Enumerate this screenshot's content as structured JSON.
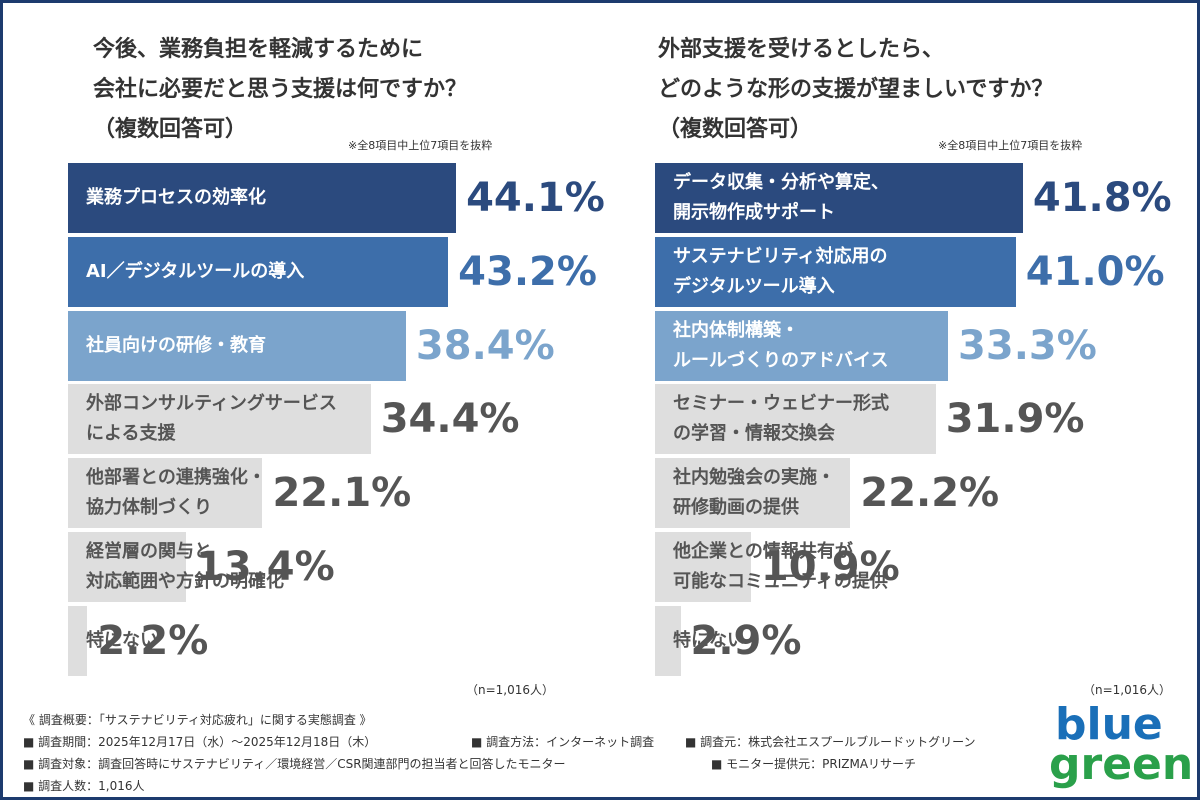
{
  "chart_data": [
    {
      "type": "bar",
      "orientation": "horizontal",
      "title": [
        "今後、業務負担を軽減するために",
        "会社に必要だと思う支援は何ですか？",
        "（複数回答可）"
      ],
      "note": "※全8項目中上位7項目を抜粋",
      "sample": "（n=1,016人）",
      "categories": [
        "業務プロセスの効率化",
        "AI／デジタルツールの導入",
        "社員向けの研修・教育",
        "外部コンサルティングサービス\nによる支援",
        "他部署との連携強化・\n協力体制づくり",
        "経営層の関与と\n対応範囲や方針の明確化",
        "特にない"
      ],
      "values": [
        44.1,
        43.2,
        38.4,
        34.4,
        22.1,
        13.4,
        2.2
      ],
      "value_labels": [
        "44.1%",
        "43.2%",
        "38.4%",
        "34.4%",
        "22.1%",
        "13.4%",
        "2.2%"
      ],
      "colors": [
        "#2b4a7e",
        "#3d6eaa",
        "#7ba4cc",
        "#dedede",
        "#dedede",
        "#dedede",
        "#dedede"
      ],
      "text_colors": [
        "#ffffff",
        "#ffffff",
        "#ffffff",
        "#555555",
        "#555555",
        "#555555",
        "#555555"
      ],
      "value_label_colors": [
        "#2b4a7e",
        "#3d6eaa",
        "#7ba4cc",
        "#555555",
        "#555555",
        "#555555",
        "#555555"
      ]
    },
    {
      "type": "bar",
      "orientation": "horizontal",
      "title": [
        "外部支援を受けるとしたら、",
        "どのような形の支援が望ましいですか？",
        "（複数回答可）"
      ],
      "note": "※全8項目中上位7項目を抜粋",
      "sample": "（n=1,016人）",
      "categories": [
        "データ収集・分析や算定、\n開示物作成サポート",
        "サステナビリティ対応用の\nデジタルツール導入",
        "社内体制構築・\nルールづくりのアドバイス",
        "セミナー・ウェビナー形式\nの学習・情報交換会",
        "社内勉強会の実施・\n研修動画の提供",
        "他企業との情報共有が\n可能なコミュニティの提供",
        "特にない"
      ],
      "values": [
        41.8,
        41.0,
        33.3,
        31.9,
        22.2,
        10.9,
        2.9
      ],
      "value_labels": [
        "41.8%",
        "41.0%",
        "33.3%",
        "31.9%",
        "22.2%",
        "10.9%",
        "2.9%"
      ],
      "colors": [
        "#2b4a7e",
        "#3d6eaa",
        "#7ba4cc",
        "#dedede",
        "#dedede",
        "#dedede",
        "#dedede"
      ],
      "text_colors": [
        "#ffffff",
        "#ffffff",
        "#ffffff",
        "#555555",
        "#555555",
        "#555555",
        "#555555"
      ],
      "value_label_colors": [
        "#2b4a7e",
        "#3d6eaa",
        "#7ba4cc",
        "#555555",
        "#555555",
        "#555555",
        "#555555"
      ]
    }
  ],
  "footer": {
    "heading": "《 調査概要：「サステナビリティ対応疲れ」に関する実態調査 》",
    "items": [
      "■ 調査期間：2025年12月17日（水）～2025年12月18日（木）",
      "■ 調査方法：インターネット調査",
      "■ 調査元：株式会社エスプールブルードットグリーン",
      "■ 調査対象：調査回答時にサステナビリティ／環境経営／CSR関連部門の担当者と回答したモニター",
      "■ モニター提供元：PRIZMAリサーチ",
      "■ 調査人数：1,016人"
    ]
  },
  "logo": {
    "top": "blue",
    "bottom": "green"
  }
}
